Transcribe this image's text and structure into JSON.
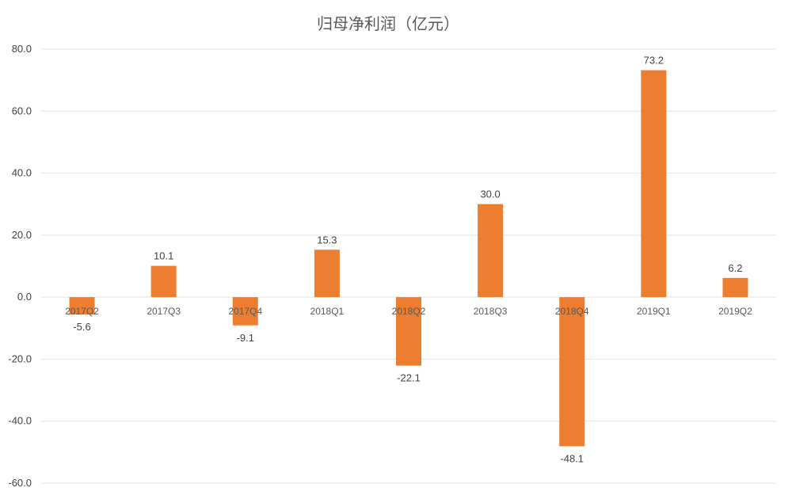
{
  "chart_data": {
    "type": "bar",
    "title": "归母净利润（亿元）",
    "categories": [
      "2017Q2",
      "2017Q3",
      "2017Q4",
      "2018Q1",
      "2018Q2",
      "2018Q3",
      "2018Q4",
      "2019Q1",
      "2019Q2"
    ],
    "values": [
      -5.6,
      10.1,
      -9.1,
      15.3,
      -22.1,
      30.0,
      -48.1,
      73.2,
      6.2
    ],
    "data_labels": [
      "-5.6",
      "10.1",
      "-9.1",
      "15.3",
      "-22.1",
      "30.0",
      "-48.1",
      "73.2",
      "6.2"
    ],
    "yticks": [
      80,
      60,
      40,
      20,
      0,
      -20,
      -40,
      -60
    ],
    "ytick_labels": [
      "80.0",
      "60.0",
      "40.0",
      "20.0",
      "0.0",
      "-20.0",
      "-40.0",
      "-60.0"
    ],
    "ylim": [
      -60,
      80
    ],
    "xlabel": "",
    "ylabel": "",
    "grid": true,
    "legend": "none",
    "bar_color": "#ED7D31",
    "gridline_color": "#E3E3E3"
  }
}
